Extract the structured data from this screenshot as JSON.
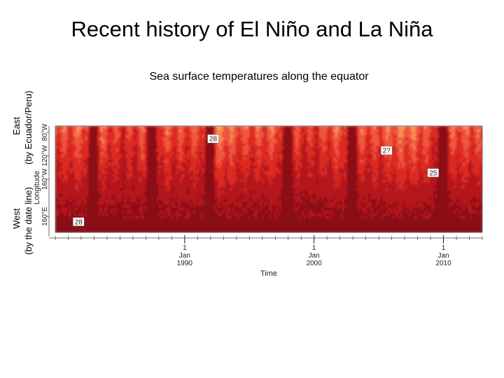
{
  "title": "Recent history of El Niño and La Niña",
  "subtitle": "Sea surface temperatures along the equator",
  "left_labels": {
    "east": "East",
    "east_note": "(by Ecuador/Peru)",
    "west": "West",
    "west_note": "(by the date line)"
  },
  "colors": {
    "warmest": "#8b0f12",
    "very_warm": "#b5171a",
    "warm": "#dc2a22",
    "mild": "#f0553c",
    "cool": "#f98d57",
    "cooler": "#fdbf4b",
    "cold": "#f3ee3a",
    "coldest": "#4bd62b"
  },
  "chart_data": {
    "type": "heatmap",
    "title": "Sea surface temperatures along the equator",
    "xlabel": "Time",
    "ylabel": "Longitude",
    "x_range": [
      1980,
      2013
    ],
    "y_range": [
      "160°E",
      "80°W"
    ],
    "y_ticks": [
      "160°E",
      "160°W",
      "120°W",
      "80°W"
    ],
    "x_ticks": [
      {
        "year": 1990,
        "day": "1",
        "month": "Jan",
        "label": "1990"
      },
      {
        "year": 2000,
        "day": "1",
        "month": "Jan",
        "label": "2000"
      },
      {
        "year": 2010,
        "day": "1",
        "month": "Jan",
        "label": "2010"
      }
    ],
    "contour_labels": [
      {
        "text": "28",
        "year": 1992.2,
        "longitude_frac": 0.88
      },
      {
        "text": "28",
        "year": 1981.8,
        "longitude_frac": 0.1
      },
      {
        "text": "2?",
        "year": 2005.6,
        "longitude_frac": 0.77
      },
      {
        "text": "25",
        "year": 2009.2,
        "longitude_frac": 0.56
      }
    ],
    "el_nino_years": [
      1982.9,
      1987.5,
      1991.9,
      1997.9,
      2002.9,
      2009.9
    ],
    "contour_levels_c": [
      25,
      28
    ]
  }
}
